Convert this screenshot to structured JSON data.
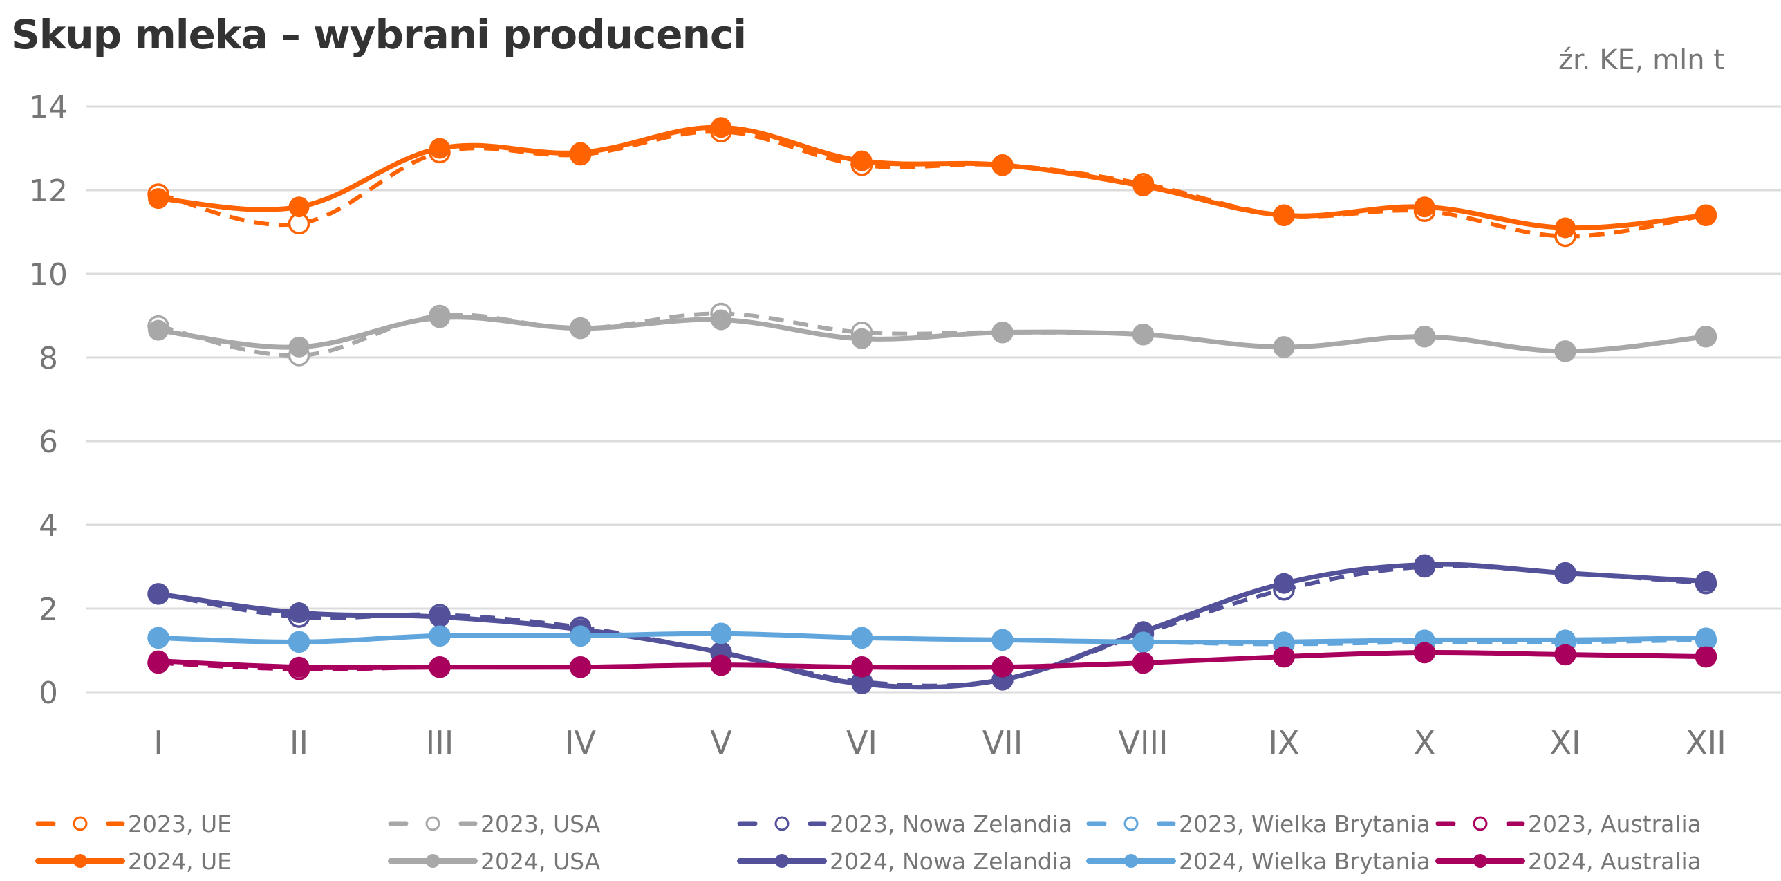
{
  "header": {
    "title": "Skup mleka – wybrani producenci",
    "source": "źr. KE, mln t"
  },
  "chart_data": {
    "type": "line",
    "title": "Skup mleka – wybrani producenci",
    "unit_note": "źr. KE, mln t",
    "xlabel": "",
    "ylabel": "",
    "categories": [
      "I",
      "II",
      "III",
      "IV",
      "V",
      "VI",
      "VII",
      "VIII",
      "IX",
      "X",
      "XI",
      "XII"
    ],
    "ylim": [
      0,
      14
    ],
    "yticks": [
      0,
      2,
      4,
      6,
      8,
      10,
      12,
      14
    ],
    "grid": true,
    "legend_position": "bottom",
    "series": [
      {
        "name": "2023, UE",
        "color": "#FF6200",
        "style": "dashed",
        "marker": "open",
        "values": [
          11.9,
          11.2,
          12.9,
          12.85,
          13.4,
          12.6,
          12.6,
          12.15,
          11.4,
          11.5,
          10.9,
          11.4
        ]
      },
      {
        "name": "2023, USA",
        "color": "#A8A8A8",
        "style": "dashed",
        "marker": "open",
        "values": [
          8.75,
          8.05,
          9.0,
          8.7,
          9.05,
          8.6,
          8.6,
          8.55,
          8.25,
          8.5,
          8.15,
          8.5
        ]
      },
      {
        "name": "2023, Nowa Zelandia",
        "color": "#525199",
        "style": "dashed",
        "marker": "open",
        "values": [
          2.35,
          1.8,
          1.85,
          1.55,
          0.95,
          0.25,
          0.3,
          1.4,
          2.45,
          3.0,
          2.85,
          2.6
        ]
      },
      {
        "name": "2023, Wielka Brytania",
        "color": "#60A5DC",
        "style": "dashed",
        "marker": "open",
        "values": [
          1.3,
          1.2,
          1.35,
          1.35,
          1.4,
          1.3,
          1.25,
          1.2,
          1.15,
          1.2,
          1.2,
          1.25
        ]
      },
      {
        "name": "2023, Australia",
        "color": "#A8005C",
        "style": "dashed",
        "marker": "open",
        "values": [
          0.7,
          0.55,
          0.6,
          0.6,
          0.65,
          0.6,
          0.6,
          0.7,
          0.85,
          0.95,
          0.9,
          0.85
        ]
      },
      {
        "name": "2024, UE",
        "color": "#FF6200",
        "style": "solid",
        "marker": "filled",
        "values": [
          11.8,
          11.6,
          13.0,
          12.9,
          13.5,
          12.7,
          12.6,
          12.1,
          11.4,
          11.6,
          11.1,
          11.4
        ]
      },
      {
        "name": "2024, USA",
        "color": "#A8A8A8",
        "style": "solid",
        "marker": "filled",
        "values": [
          8.65,
          8.25,
          8.95,
          8.7,
          8.9,
          8.45,
          8.6,
          8.55,
          8.25,
          8.5,
          8.15,
          8.5
        ]
      },
      {
        "name": "2024, Nowa Zelandia",
        "color": "#525199",
        "style": "solid",
        "marker": "filled",
        "values": [
          2.35,
          1.9,
          1.8,
          1.5,
          0.95,
          0.2,
          0.3,
          1.45,
          2.6,
          3.05,
          2.85,
          2.65
        ]
      },
      {
        "name": "2024, Wielka Brytania",
        "color": "#60A5DC",
        "style": "solid",
        "marker": "filled",
        "values": [
          1.3,
          1.2,
          1.35,
          1.35,
          1.4,
          1.3,
          1.25,
          1.2,
          1.2,
          1.25,
          1.25,
          1.3
        ]
      },
      {
        "name": "2024, Australia",
        "color": "#A8005C",
        "style": "solid",
        "marker": "filled",
        "values": [
          0.75,
          0.6,
          0.6,
          0.6,
          0.65,
          0.6,
          0.6,
          0.7,
          0.85,
          0.95,
          0.9,
          0.85
        ]
      }
    ]
  }
}
